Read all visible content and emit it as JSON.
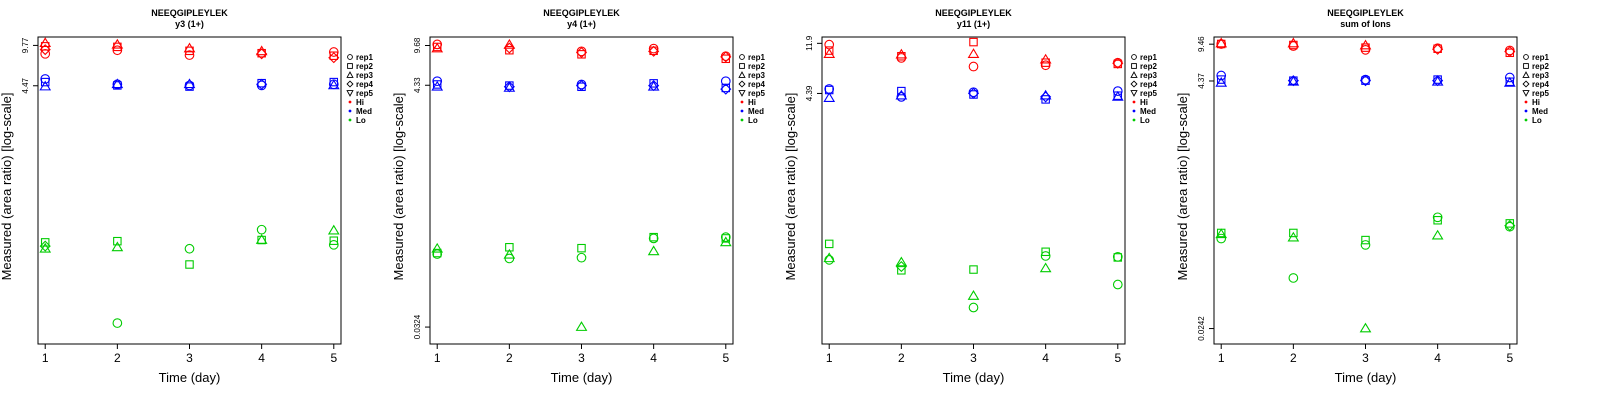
{
  "chart_data": [
    {
      "type": "scatter",
      "title": "NEEQGIPLEYLEK",
      "subtitle": "y3 (1+)",
      "xlabel": "Time (day)",
      "ylabel": "Measured (area ratio) [log-scale]",
      "x_ticks": [
        "1",
        "2",
        "3",
        "4",
        "5"
      ],
      "y_ticks": [
        "4.47",
        "9.77"
      ],
      "xlim": [
        0.9,
        5.1
      ],
      "ylim": [
        0.03,
        11.5
      ],
      "y_scale": "log",
      "grid": false,
      "legend_position": "right",
      "series": [
        {
          "name": "Hi",
          "color": "#ff0000",
          "points": [
            [
              1,
              10.2,
              "rep3"
            ],
            [
              1,
              9.6,
              "rep2"
            ],
            [
              1,
              9.0,
              "rep4"
            ],
            [
              1,
              8.3,
              "rep1"
            ],
            [
              2,
              9.9,
              "rep3"
            ],
            [
              2,
              9.5,
              "rep2"
            ],
            [
              2,
              8.9,
              "rep1"
            ],
            [
              3,
              9.2,
              "rep3"
            ],
            [
              3,
              8.8,
              "rep2"
            ],
            [
              3,
              8.1,
              "rep1"
            ],
            [
              4,
              8.7,
              "rep3"
            ],
            [
              4,
              8.4,
              "rep2"
            ],
            [
              4,
              8.3,
              "rep4"
            ],
            [
              5,
              8.6,
              "rep1"
            ],
            [
              5,
              8.0,
              "rep2"
            ],
            [
              5,
              7.7,
              "rep4"
            ]
          ]
        },
        {
          "name": "Med",
          "color": "#0000ff",
          "points": [
            [
              1,
              5.1,
              "rep1"
            ],
            [
              1,
              4.8,
              "rep2"
            ],
            [
              1,
              4.4,
              "rep3"
            ],
            [
              2,
              4.6,
              "rep1"
            ],
            [
              2,
              4.5,
              "rep2"
            ],
            [
              2,
              4.6,
              "rep3"
            ],
            [
              3,
              4.6,
              "rep3"
            ],
            [
              3,
              4.4,
              "rep2"
            ],
            [
              3,
              4.5,
              "rep1"
            ],
            [
              4,
              4.7,
              "rep2"
            ],
            [
              4,
              4.5,
              "rep1"
            ],
            [
              4,
              4.6,
              "rep4"
            ],
            [
              5,
              4.8,
              "rep2"
            ],
            [
              5,
              4.6,
              "rep1"
            ],
            [
              5,
              4.5,
              "rep3"
            ]
          ]
        },
        {
          "name": "Lo",
          "color": "#00cc00",
          "points": [
            [
              1,
              0.215,
              "rep2"
            ],
            [
              1,
              0.19,
              "rep3"
            ],
            [
              1,
              0.2,
              "rep4"
            ],
            [
              2,
              0.22,
              "rep2"
            ],
            [
              2,
              0.195,
              "rep3"
            ],
            [
              2,
              0.045,
              "rep1"
            ],
            [
              3,
              0.19,
              "rep1"
            ],
            [
              3,
              0.14,
              "rep2"
            ],
            [
              4,
              0.275,
              "rep1"
            ],
            [
              4,
              0.225,
              "rep3"
            ],
            [
              4,
              0.225,
              "rep2"
            ],
            [
              5,
              0.27,
              "rep3"
            ],
            [
              5,
              0.222,
              "rep2"
            ],
            [
              5,
              0.205,
              "rep1"
            ]
          ]
        }
      ]
    },
    {
      "type": "scatter",
      "title": "NEEQGIPLEYLEK",
      "subtitle": "y4 (1+)",
      "xlabel": "Time (day)",
      "ylabel": "Measured (area ratio) [log-scale]",
      "x_ticks": [
        "1",
        "2",
        "3",
        "4",
        "5"
      ],
      "y_ticks": [
        "0.0324",
        "4.33",
        "9.68"
      ],
      "xlim": [
        0.9,
        5.1
      ],
      "ylim": [
        0.023,
        11.5
      ],
      "y_scale": "log",
      "grid": false,
      "legend_position": "right",
      "series": [
        {
          "name": "Hi",
          "color": "#ff0000",
          "points": [
            [
              1,
              9.9,
              "rep1"
            ],
            [
              1,
              9.4,
              "rep2"
            ],
            [
              1,
              9.1,
              "rep3"
            ],
            [
              2,
              9.8,
              "rep3"
            ],
            [
              2,
              9.2,
              "rep4"
            ],
            [
              2,
              8.8,
              "rep2"
            ],
            [
              3,
              8.6,
              "rep1"
            ],
            [
              3,
              8.4,
              "rep4"
            ],
            [
              3,
              8.1,
              "rep2"
            ],
            [
              4,
              9.1,
              "rep1"
            ],
            [
              4,
              8.7,
              "rep2"
            ],
            [
              4,
              8.6,
              "rep4"
            ],
            [
              5,
              7.8,
              "rep1"
            ],
            [
              5,
              7.4,
              "rep2"
            ],
            [
              5,
              7.7,
              "rep4"
            ]
          ]
        },
        {
          "name": "Med",
          "color": "#0000ff",
          "points": [
            [
              1,
              4.7,
              "rep1"
            ],
            [
              1,
              4.4,
              "rep2"
            ],
            [
              1,
              4.2,
              "rep3"
            ],
            [
              2,
              4.3,
              "rep2"
            ],
            [
              2,
              4.1,
              "rep3"
            ],
            [
              2,
              4.2,
              "rep4"
            ],
            [
              3,
              4.4,
              "rep1"
            ],
            [
              3,
              4.2,
              "rep2"
            ],
            [
              3,
              4.3,
              "rep4"
            ],
            [
              4,
              4.5,
              "rep2"
            ],
            [
              4,
              4.2,
              "rep3"
            ],
            [
              4,
              4.3,
              "rep4"
            ],
            [
              5,
              4.7,
              "rep1"
            ],
            [
              5,
              4.1,
              "rep2"
            ],
            [
              5,
              4.0,
              "rep4"
            ]
          ]
        },
        {
          "name": "Lo",
          "color": "#00cc00",
          "points": [
            [
              1,
              0.158,
              "rep3"
            ],
            [
              1,
              0.145,
              "rep2"
            ],
            [
              1,
              0.142,
              "rep1"
            ],
            [
              2,
              0.163,
              "rep2"
            ],
            [
              2,
              0.14,
              "rep3"
            ],
            [
              2,
              0.13,
              "rep1"
            ],
            [
              3,
              0.16,
              "rep2"
            ],
            [
              3,
              0.132,
              "rep1"
            ],
            [
              3,
              0.0324,
              "rep3"
            ],
            [
              4,
              0.2,
              "rep2"
            ],
            [
              4,
              0.195,
              "rep1"
            ],
            [
              4,
              0.15,
              "rep3"
            ],
            [
              5,
              0.2,
              "rep1"
            ],
            [
              5,
              0.195,
              "rep2"
            ],
            [
              5,
              0.18,
              "rep3"
            ]
          ]
        }
      ]
    },
    {
      "type": "scatter",
      "title": "NEEQGIPLEYLEK",
      "subtitle": "y11 (1+)",
      "xlabel": "Time (day)",
      "ylabel": "Measured (area ratio) [log-scale]",
      "x_ticks": [
        "1",
        "2",
        "3",
        "4",
        "5"
      ],
      "y_ticks": [
        "4.39",
        "11.9"
      ],
      "xlim": [
        0.9,
        5.1
      ],
      "ylim": [
        0.03,
        13.5
      ],
      "y_scale": "log",
      "grid": false,
      "legend_position": "right",
      "series": [
        {
          "name": "Hi",
          "color": "#ff0000",
          "points": [
            [
              1,
              11.6,
              "rep1"
            ],
            [
              1,
              10.3,
              "rep2"
            ],
            [
              1,
              9.6,
              "rep3"
            ],
            [
              2,
              9.5,
              "rep3"
            ],
            [
              2,
              9.2,
              "rep2"
            ],
            [
              2,
              8.9,
              "rep1"
            ],
            [
              3,
              12.2,
              "rep2"
            ],
            [
              3,
              9.6,
              "rep3"
            ],
            [
              3,
              7.5,
              "rep1"
            ],
            [
              4,
              8.6,
              "rep3"
            ],
            [
              4,
              8.1,
              "rep2"
            ],
            [
              4,
              7.7,
              "rep1"
            ],
            [
              5,
              8.1,
              "rep1"
            ],
            [
              5,
              7.9,
              "rep2"
            ],
            [
              5,
              8.0,
              "rep4"
            ]
          ]
        },
        {
          "name": "Med",
          "color": "#0000ff",
          "points": [
            [
              1,
              4.8,
              "rep1"
            ],
            [
              1,
              4.7,
              "rep2"
            ],
            [
              1,
              4.0,
              "rep3"
            ],
            [
              2,
              4.6,
              "rep2"
            ],
            [
              2,
              4.2,
              "rep3"
            ],
            [
              2,
              4.1,
              "rep1"
            ],
            [
              3,
              4.5,
              "rep1"
            ],
            [
              3,
              4.3,
              "rep2"
            ],
            [
              3,
              4.4,
              "rep4"
            ],
            [
              4,
              4.2,
              "rep3"
            ],
            [
              4,
              3.9,
              "rep2"
            ],
            [
              4,
              4.1,
              "rep4"
            ],
            [
              5,
              4.6,
              "rep1"
            ],
            [
              5,
              4.2,
              "rep2"
            ],
            [
              5,
              4.1,
              "rep3"
            ]
          ]
        },
        {
          "name": "Lo",
          "color": "#00cc00",
          "points": [
            [
              1,
              0.22,
              "rep2"
            ],
            [
              1,
              0.165,
              "rep3"
            ],
            [
              1,
              0.16,
              "rep1"
            ],
            [
              2,
              0.152,
              "rep3"
            ],
            [
              2,
              0.13,
              "rep2"
            ],
            [
              2,
              0.14,
              "rep4"
            ],
            [
              3,
              0.132,
              "rep2"
            ],
            [
              3,
              0.078,
              "rep3"
            ],
            [
              3,
              0.062,
              "rep1"
            ],
            [
              4,
              0.188,
              "rep2"
            ],
            [
              4,
              0.173,
              "rep1"
            ],
            [
              4,
              0.135,
              "rep3"
            ],
            [
              5,
              0.17,
              "rep1"
            ],
            [
              5,
              0.168,
              "rep2"
            ],
            [
              5,
              0.098,
              "rep1"
            ]
          ]
        }
      ]
    },
    {
      "type": "scatter",
      "title": "NEEQGIPLEYLEK",
      "subtitle": "sum of Ions",
      "xlabel": "Time (day)",
      "ylabel": "Measured (area ratio) [log-scale]",
      "x_ticks": [
        "1",
        "2",
        "3",
        "4",
        "5"
      ],
      "y_ticks": [
        "0.0242",
        "4.37",
        "9.46"
      ],
      "xlim": [
        0.9,
        5.1
      ],
      "ylim": [
        0.0175,
        11.0
      ],
      "y_scale": "log",
      "grid": false,
      "legend_position": "right",
      "series": [
        {
          "name": "Hi",
          "color": "#ff0000",
          "points": [
            [
              1,
              9.5,
              "rep1"
            ],
            [
              1,
              9.5,
              "rep2"
            ],
            [
              1,
              9.6,
              "rep3"
            ],
            [
              2,
              9.6,
              "rep3"
            ],
            [
              2,
              9.3,
              "rep2"
            ],
            [
              2,
              9.1,
              "rep1"
            ],
            [
              3,
              9.2,
              "rep3"
            ],
            [
              3,
              8.8,
              "rep2"
            ],
            [
              3,
              8.4,
              "rep1"
            ],
            [
              4,
              8.7,
              "rep1"
            ],
            [
              4,
              8.6,
              "rep2"
            ],
            [
              4,
              8.5,
              "rep4"
            ],
            [
              5,
              8.3,
              "rep1"
            ],
            [
              5,
              7.9,
              "rep2"
            ],
            [
              5,
              8.1,
              "rep4"
            ]
          ]
        },
        {
          "name": "Med",
          "color": "#0000ff",
          "points": [
            [
              1,
              4.9,
              "rep1"
            ],
            [
              1,
              4.5,
              "rep2"
            ],
            [
              1,
              4.2,
              "rep3"
            ],
            [
              2,
              4.4,
              "rep2"
            ],
            [
              2,
              4.3,
              "rep3"
            ],
            [
              2,
              4.4,
              "rep4"
            ],
            [
              3,
              4.5,
              "rep1"
            ],
            [
              3,
              4.4,
              "rep2"
            ],
            [
              3,
              4.4,
              "rep4"
            ],
            [
              4,
              4.5,
              "rep2"
            ],
            [
              4,
              4.3,
              "rep3"
            ],
            [
              4,
              4.4,
              "rep4"
            ],
            [
              5,
              4.7,
              "rep1"
            ],
            [
              5,
              4.3,
              "rep2"
            ],
            [
              5,
              4.2,
              "rep3"
            ]
          ]
        },
        {
          "name": "Lo",
          "color": "#00cc00",
          "points": [
            [
              1,
              0.18,
              "rep2"
            ],
            [
              1,
              0.175,
              "rep3"
            ],
            [
              1,
              0.16,
              "rep1"
            ],
            [
              2,
              0.18,
              "rep2"
            ],
            [
              2,
              0.163,
              "rep3"
            ],
            [
              2,
              0.07,
              "rep1"
            ],
            [
              3,
              0.155,
              "rep2"
            ],
            [
              3,
              0.14,
              "rep1"
            ],
            [
              3,
              0.0242,
              "rep3"
            ],
            [
              4,
              0.25,
              "rep1"
            ],
            [
              4,
              0.235,
              "rep2"
            ],
            [
              4,
              0.17,
              "rep3"
            ],
            [
              5,
              0.22,
              "rep2"
            ],
            [
              5,
              0.205,
              "rep1"
            ],
            [
              5,
              0.21,
              "rep4"
            ]
          ]
        }
      ]
    }
  ],
  "legend": {
    "shapes": [
      {
        "name": "rep1",
        "shape": "circle"
      },
      {
        "name": "rep2",
        "shape": "square"
      },
      {
        "name": "rep3",
        "shape": "triangle"
      },
      {
        "name": "rep4",
        "shape": "diamond"
      },
      {
        "name": "rep5",
        "shape": "triangle-down"
      }
    ],
    "groups": [
      {
        "name": "Hi",
        "color": "#ff0000"
      },
      {
        "name": "Med",
        "color": "#0000ff"
      },
      {
        "name": "Lo",
        "color": "#00cc00"
      }
    ]
  }
}
